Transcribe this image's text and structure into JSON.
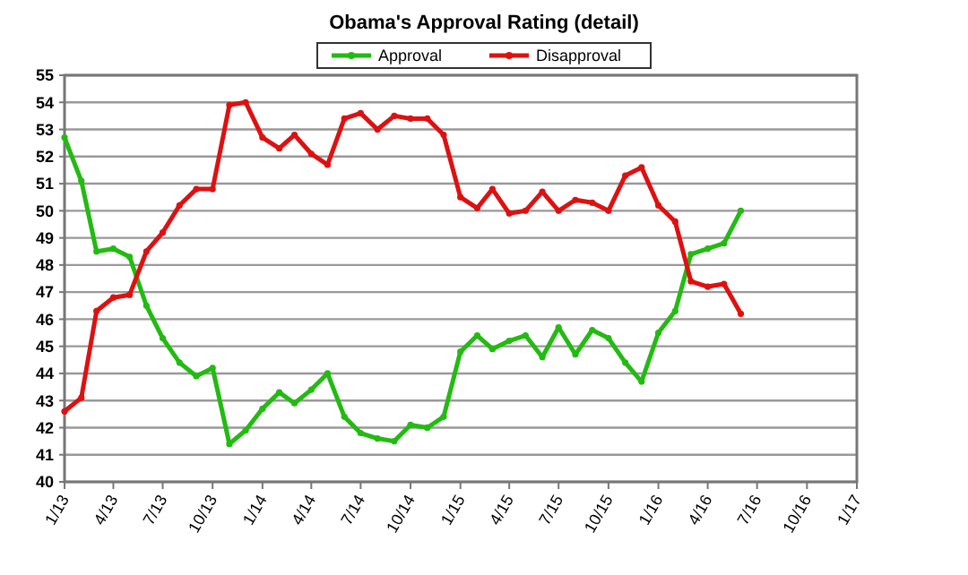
{
  "chart_data": {
    "type": "line",
    "title": "Obama's Approval Rating (detail)",
    "x": [
      "2013-01",
      "2013-02",
      "2013-03",
      "2013-04",
      "2013-05",
      "2013-06",
      "2013-07",
      "2013-08",
      "2013-09",
      "2013-10",
      "2013-11",
      "2013-12",
      "2014-01",
      "2014-02",
      "2014-03",
      "2014-04",
      "2014-05",
      "2014-06",
      "2014-07",
      "2014-08",
      "2014-09",
      "2014-10",
      "2014-11",
      "2014-12",
      "2015-01",
      "2015-02",
      "2015-03",
      "2015-04",
      "2015-05",
      "2015-06",
      "2015-07",
      "2015-08",
      "2015-09",
      "2015-10",
      "2015-11",
      "2015-12",
      "2016-01",
      "2016-02",
      "2016-03",
      "2016-04",
      "2016-05",
      "2016-06"
    ],
    "series": [
      {
        "name": "Approval",
        "color": "#22bb11",
        "values": [
          52.7,
          51.1,
          48.5,
          48.6,
          48.3,
          46.5,
          45.3,
          44.4,
          43.9,
          44.2,
          41.4,
          41.9,
          42.7,
          43.3,
          42.9,
          43.4,
          44.0,
          42.4,
          41.8,
          41.6,
          41.5,
          42.1,
          42.0,
          42.4,
          44.8,
          45.4,
          44.9,
          45.2,
          45.4,
          44.6,
          45.7,
          44.7,
          45.6,
          45.3,
          44.4,
          43.7,
          45.5,
          46.3,
          48.4,
          48.6,
          48.8,
          50.0
        ]
      },
      {
        "name": "Disapproval",
        "color": "#dd1111",
        "values": [
          42.6,
          43.1,
          46.3,
          46.8,
          46.9,
          48.5,
          49.2,
          50.2,
          50.8,
          50.8,
          53.9,
          54.0,
          52.7,
          52.3,
          52.8,
          52.1,
          51.7,
          53.4,
          53.6,
          53.0,
          53.5,
          53.4,
          53.4,
          52.8,
          50.5,
          50.1,
          50.8,
          49.9,
          50.0,
          50.7,
          50.0,
          50.4,
          50.3,
          50.0,
          51.3,
          51.6,
          50.2,
          49.6,
          47.4,
          47.2,
          47.3,
          46.2
        ]
      }
    ],
    "xlim": [
      "2013-01",
      "2017-01"
    ],
    "xticks": [
      {
        "value": "2013-01",
        "label": "1/13"
      },
      {
        "value": "2013-04",
        "label": "4/13"
      },
      {
        "value": "2013-07",
        "label": "7/13"
      },
      {
        "value": "2013-10",
        "label": "10/13"
      },
      {
        "value": "2014-01",
        "label": "1/14"
      },
      {
        "value": "2014-04",
        "label": "4/14"
      },
      {
        "value": "2014-07",
        "label": "7/14"
      },
      {
        "value": "2014-10",
        "label": "10/14"
      },
      {
        "value": "2015-01",
        "label": "1/15"
      },
      {
        "value": "2015-04",
        "label": "4/15"
      },
      {
        "value": "2015-07",
        "label": "7/15"
      },
      {
        "value": "2015-10",
        "label": "10/15"
      },
      {
        "value": "2016-01",
        "label": "1/16"
      },
      {
        "value": "2016-04",
        "label": "4/16"
      },
      {
        "value": "2016-07",
        "label": "7/16"
      },
      {
        "value": "2016-10",
        "label": "10/16"
      },
      {
        "value": "2017-01",
        "label": "1/17"
      }
    ],
    "ylim": [
      40,
      55
    ],
    "yticks": [
      40,
      41,
      42,
      43,
      44,
      45,
      46,
      47,
      48,
      49,
      50,
      51,
      52,
      53,
      54,
      55
    ],
    "grid": "y",
    "legend": "top",
    "marker": "circle",
    "line_style": "solid"
  }
}
